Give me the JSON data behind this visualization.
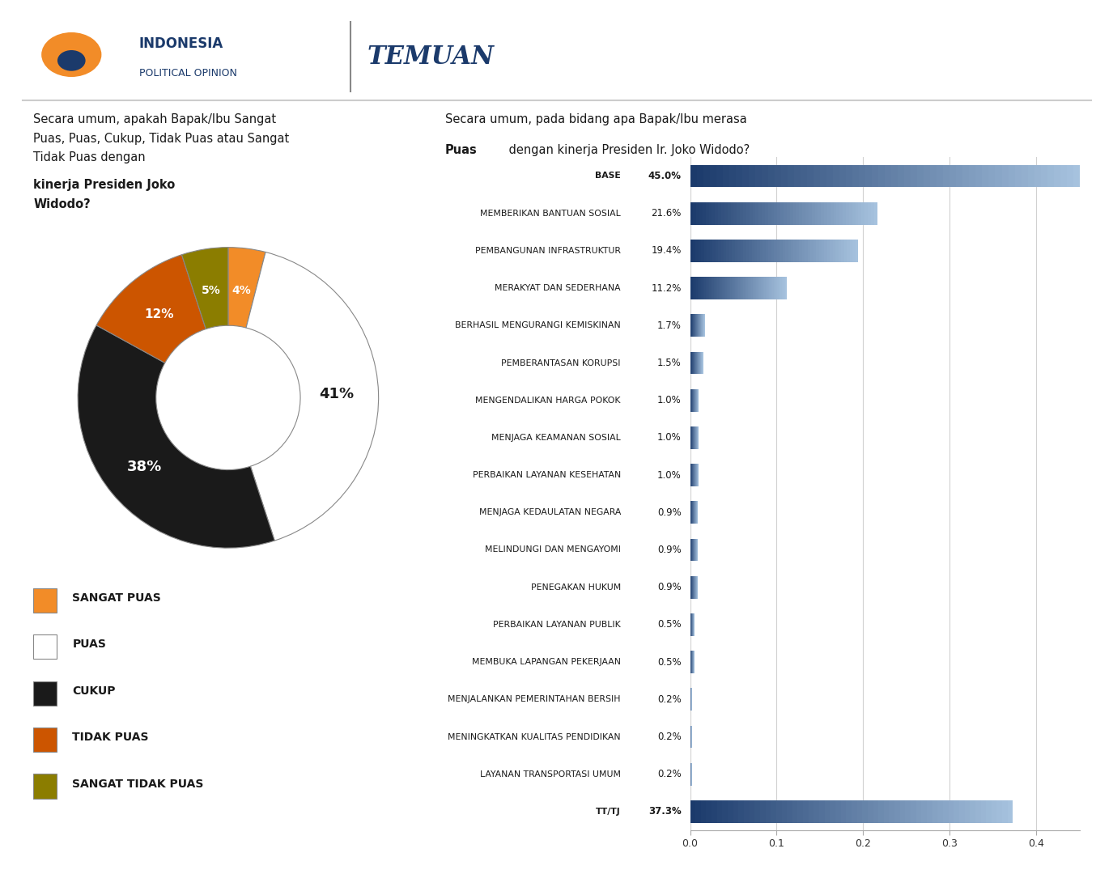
{
  "pie_values": [
    4,
    41,
    38,
    12,
    5
  ],
  "pie_labels_text": [
    "4%",
    "41%",
    "38%",
    "12%",
    "5%"
  ],
  "pie_colors": [
    "#F28C28",
    "#FFFFFF",
    "#1a1a1a",
    "#CC5500",
    "#8B7D00"
  ],
  "pie_legend": [
    "SANGAT PUAS",
    "PUAS",
    "CUKUP",
    "TIDAK PUAS",
    "SANGAT TIDAK PUAS"
  ],
  "pie_legend_colors": [
    "#F28C28",
    "#FFFFFF",
    "#1a1a1a",
    "#CC5500",
    "#8B7D00"
  ],
  "bar_categories": [
    "BASE",
    "MEMBERIKAN BANTUAN SOSIAL",
    "PEMBANGUNAN INFRASTRUKTUR",
    "MERAKYAT DAN SEDERHANA",
    "BERHASIL MENGURANGI KEMISKINAN",
    "PEMBERANTASAN KORUPSI",
    "MENGENDALIKAN HARGA POKOK",
    "MENJAGA KEAMANAN SOSIAL",
    "PERBAIKAN LAYANAN KESEHATAN",
    "MENJAGA KEDAULATAN NEGARA",
    "MELINDUNGI DAN MENGAYOMI",
    "PENEGAKAN HUKUM",
    "PERBAIKAN LAYANAN PUBLIK",
    "MEMBUKA LAPANGAN PEKERJAAN",
    "MENJALANKAN PEMERINTAHAN BERSIH",
    "MENINGKATKAN KUALITAS PENDIDIKAN",
    "LAYANAN TRANSPORTASI UMUM",
    "TT/TJ"
  ],
  "bar_values": [
    0.45,
    0.216,
    0.194,
    0.112,
    0.017,
    0.015,
    0.01,
    0.01,
    0.01,
    0.009,
    0.009,
    0.009,
    0.005,
    0.005,
    0.002,
    0.002,
    0.002,
    0.373
  ],
  "bar_labels": [
    "45.0%",
    "21.6%",
    "19.4%",
    "11.2%",
    "1.7%",
    "1.5%",
    "1.0%",
    "1.0%",
    "1.0%",
    "0.9%",
    "0.9%",
    "0.9%",
    "0.5%",
    "0.5%",
    "0.2%",
    "0.2%",
    "0.2%",
    "37.3%"
  ],
  "bar_bold": [
    true,
    false,
    false,
    false,
    false,
    false,
    false,
    false,
    false,
    false,
    false,
    false,
    false,
    false,
    false,
    false,
    false,
    true
  ],
  "bar_color_dark": "#1B3A6B",
  "bar_color_light": "#A8C4E0",
  "background_color": "#FFFFFF",
  "logo_text1": "INDONESIA",
  "logo_text2": "POLITICAL OPINION",
  "temuan_text": "TEMUAN",
  "temuan_color": "#1B3A6B",
  "navy_color": "#1B3A6B",
  "orange_color": "#F28C28"
}
